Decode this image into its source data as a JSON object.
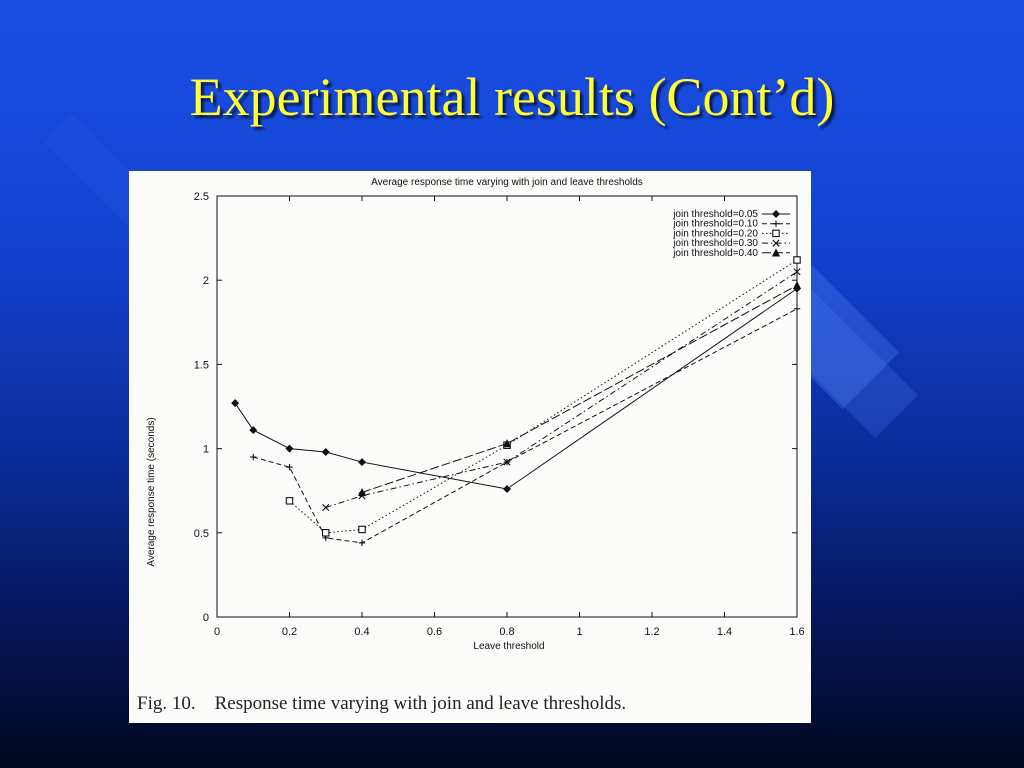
{
  "slide": {
    "title": "Experimental results (Cont’d)"
  },
  "figure": {
    "caption": "Fig. 10.    Response time varying with join and leave thresholds."
  },
  "chart_data": {
    "type": "line",
    "title": "Average response time varying with join and leave thresholds",
    "xlabel": "Leave threshold",
    "ylabel": "Average response time (seconds)",
    "xlim": [
      0,
      1.6
    ],
    "ylim": [
      0,
      2.5
    ],
    "xticks": [
      "0",
      "0.2",
      "0.4",
      "0.6",
      "0.8",
      "1",
      "1.2",
      "1.4",
      "1.6"
    ],
    "yticks": [
      "0",
      "0.5",
      "1",
      "1.5",
      "2",
      "2.5"
    ],
    "grid": false,
    "legend_position": "top-right",
    "series": [
      {
        "name": "join threshold=0.05",
        "style": "solid",
        "marker": "diamond",
        "x": [
          0.05,
          0.1,
          0.2,
          0.3,
          0.4,
          0.8,
          1.6
        ],
        "y": [
          1.27,
          1.11,
          1.0,
          0.98,
          0.92,
          0.76,
          1.95
        ]
      },
      {
        "name": "join threshold=0.10",
        "style": "dashed",
        "marker": "plus",
        "x": [
          0.1,
          0.2,
          0.3,
          0.4,
          0.8,
          1.6
        ],
        "y": [
          0.95,
          0.89,
          0.47,
          0.44,
          0.92,
          1.83
        ]
      },
      {
        "name": "join threshold=0.20",
        "style": "dotted",
        "marker": "square",
        "x": [
          0.2,
          0.3,
          0.4,
          0.8,
          1.6
        ],
        "y": [
          0.69,
          0.5,
          0.52,
          1.02,
          2.12
        ]
      },
      {
        "name": "join threshold=0.30",
        "style": "dashdot",
        "marker": "cross",
        "x": [
          0.3,
          0.4,
          0.8,
          1.6
        ],
        "y": [
          0.65,
          0.72,
          0.92,
          2.05
        ]
      },
      {
        "name": "join threshold=0.40",
        "style": "longdash",
        "marker": "triangle",
        "x": [
          0.4,
          0.8,
          1.6
        ],
        "y": [
          0.74,
          1.03,
          1.97
        ]
      }
    ]
  }
}
